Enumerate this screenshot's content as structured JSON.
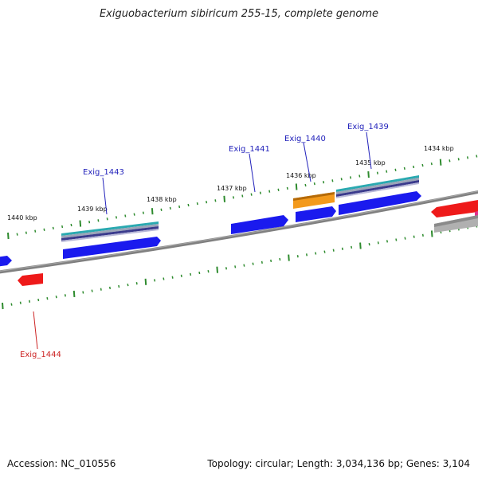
{
  "title": "Exiguobacterium sibiricum 255-15, complete genome",
  "footer": {
    "accession": "Accession: NC_010556",
    "summary": "Topology: circular; Length: 3,034,136 bp; Genes: 3,104"
  },
  "colors": {
    "forward_cds": "#1a1aee",
    "reverse_cds": "#ee1a1a",
    "highlight": "#f39a1c",
    "backbone": "#808080",
    "tick": "#2e8b2e",
    "label_blue": "#2222bb",
    "label_red": "#cc2222"
  },
  "ticks": [
    {
      "label": "1440 kbp"
    },
    {
      "label": "1439 kbp"
    },
    {
      "label": "1438 kbp"
    },
    {
      "label": "1437 kbp"
    },
    {
      "label": "1436 kbp"
    },
    {
      "label": "1435 kbp"
    },
    {
      "label": "1434 kbp"
    }
  ],
  "gene_labels": [
    {
      "name": "Exig_1443",
      "strand": "forward"
    },
    {
      "name": "Exig_1441",
      "strand": "forward"
    },
    {
      "name": "Exig_1440",
      "strand": "forward"
    },
    {
      "name": "Exig_1439",
      "strand": "forward"
    },
    {
      "name": "Exig_1444",
      "strand": "reverse"
    }
  ]
}
